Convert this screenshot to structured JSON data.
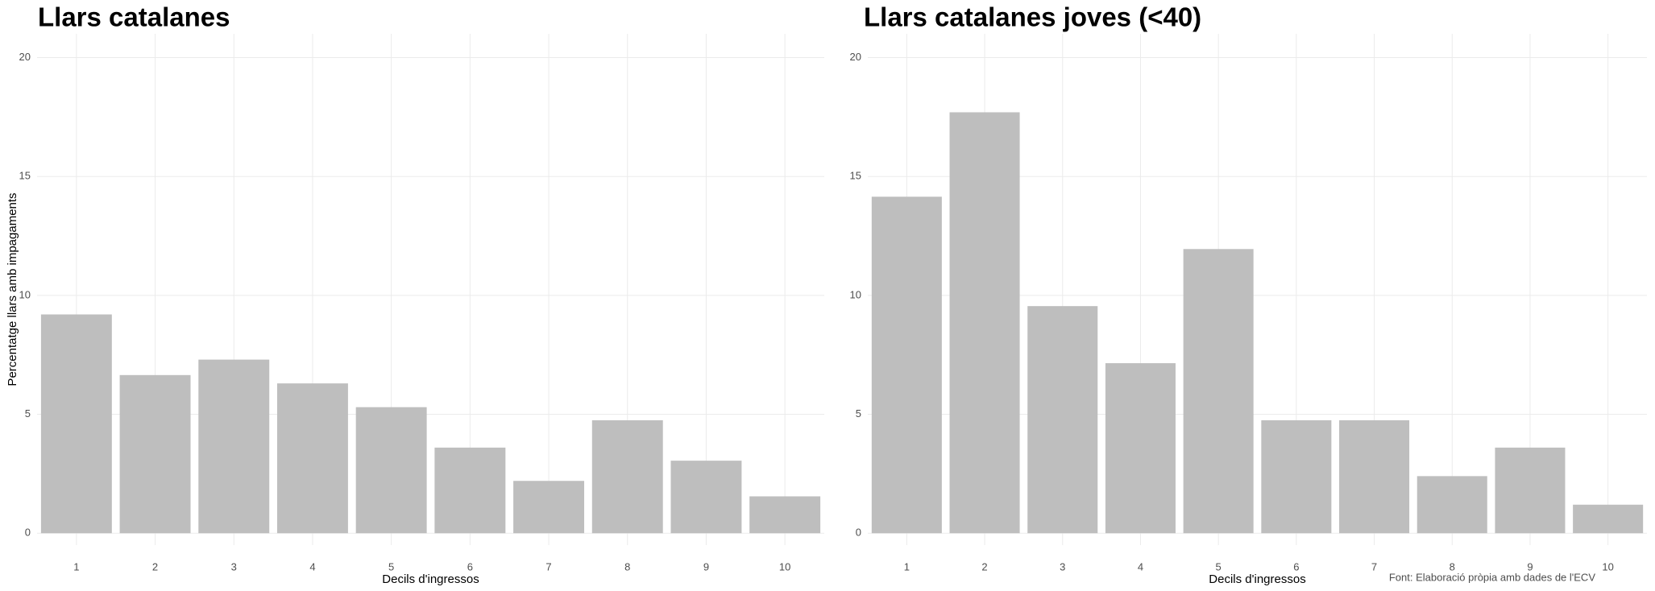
{
  "chart_data": [
    {
      "type": "bar",
      "title": "Llars catalanes",
      "x_label": "Decils d'ingressos",
      "y_label": "Percentatge llars amb impagaments",
      "categories": [
        "1",
        "2",
        "3",
        "4",
        "5",
        "6",
        "7",
        "8",
        "9",
        "10"
      ],
      "values": [
        9.2,
        6.65,
        7.3,
        6.3,
        5.3,
        3.6,
        2.2,
        4.75,
        3.05,
        1.55
      ],
      "color": "#bebebe",
      "ylim": [
        -0.5,
        21
      ],
      "yticks": [
        0,
        5,
        10,
        15,
        20
      ],
      "grid": true
    },
    {
      "type": "bar",
      "title": "Llars catalanes joves (<40)",
      "x_label": "Decils d'ingressos",
      "caption": "Font: Elaboració pròpia amb dades de l'ECV",
      "categories": [
        "1",
        "2",
        "3",
        "4",
        "5",
        "6",
        "7",
        "8",
        "9",
        "10"
      ],
      "values": [
        14.15,
        17.7,
        9.55,
        7.15,
        11.95,
        4.75,
        4.75,
        2.4,
        3.6,
        1.2
      ],
      "color": "#bebebe",
      "ylim": [
        -0.5,
        21
      ],
      "yticks": [
        0,
        5,
        10,
        15,
        20
      ],
      "grid": true
    }
  ]
}
